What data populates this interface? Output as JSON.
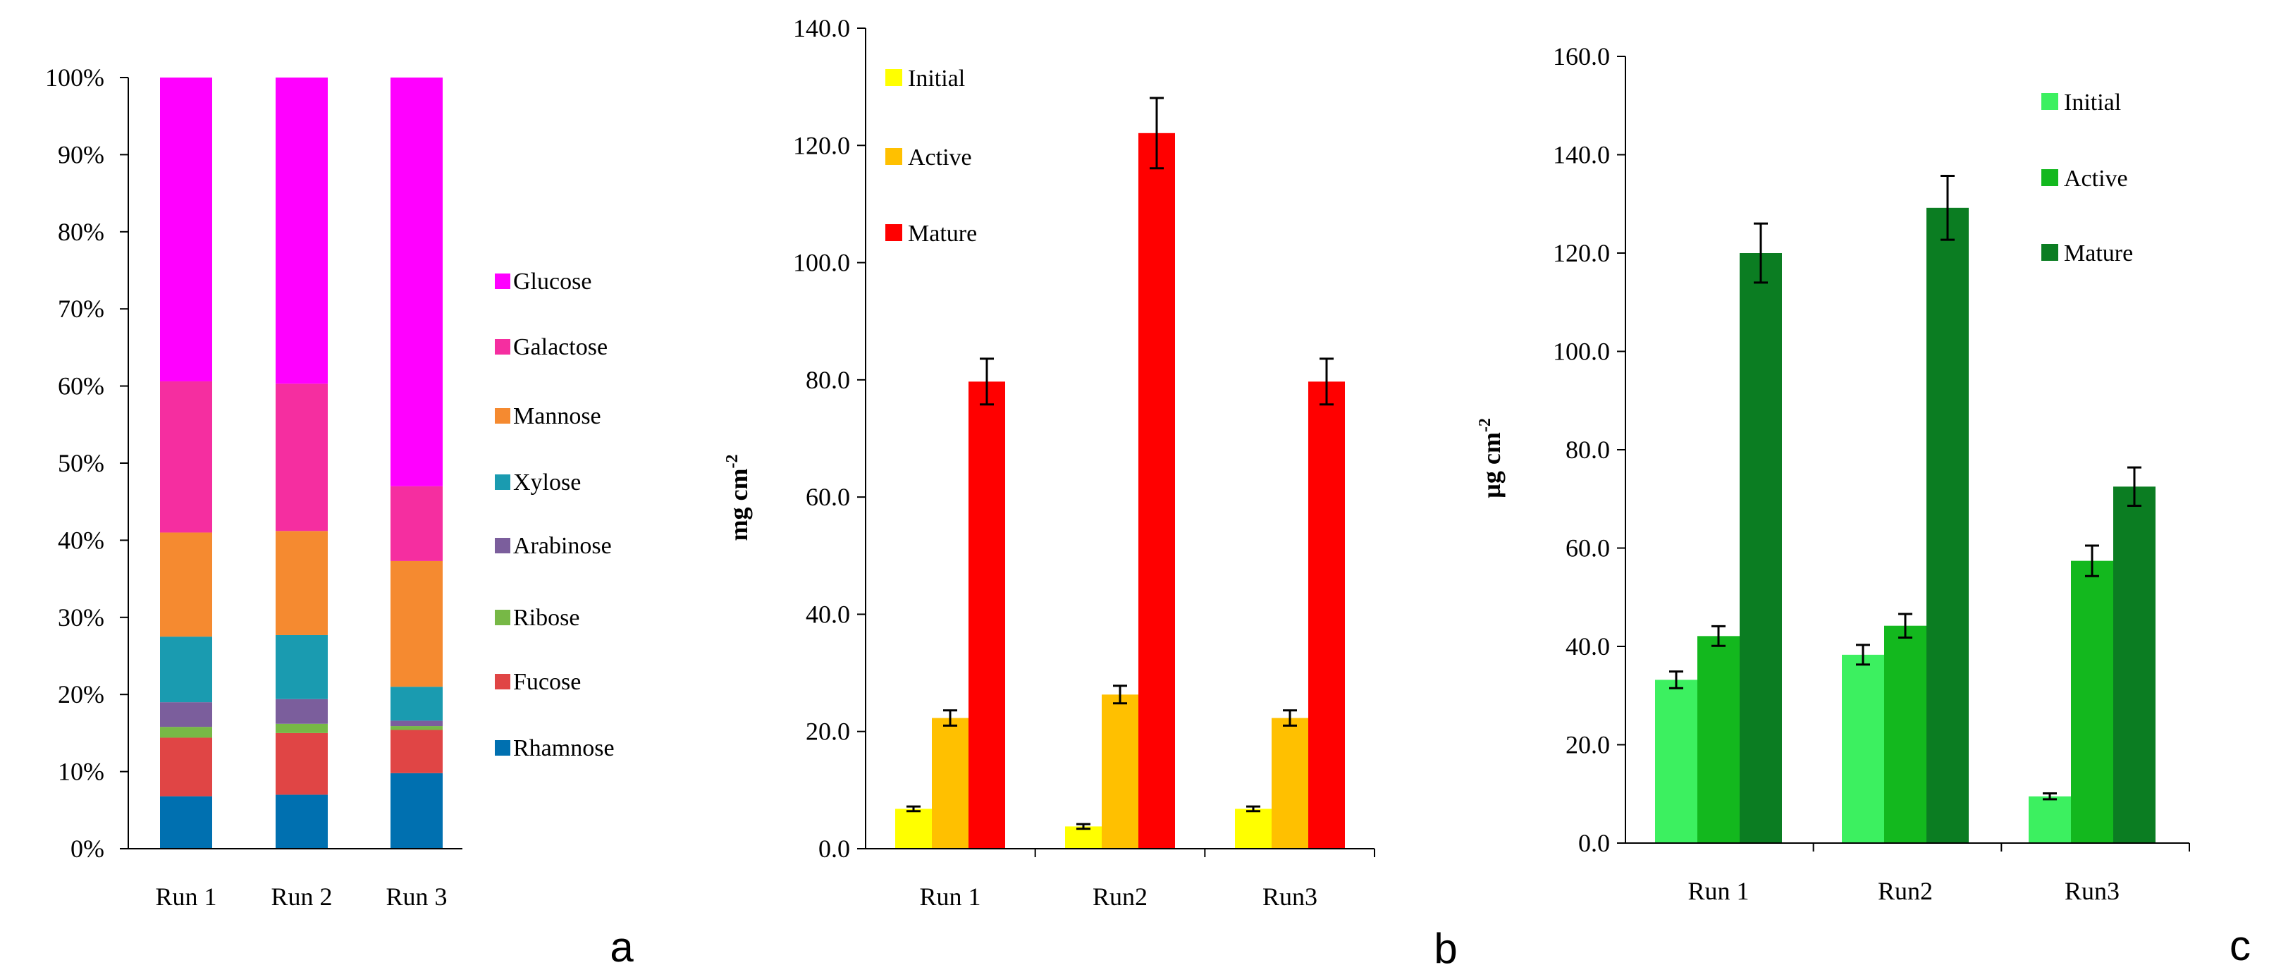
{
  "figure": {
    "panel_labels": [
      "a",
      "b",
      "c"
    ]
  },
  "chart_data": [
    {
      "type": "bar",
      "stacked": true,
      "percent": true,
      "categories": [
        "Run 1",
        "Run 2",
        "Run 3"
      ],
      "ylim": [
        0,
        100
      ],
      "yticks": [
        "0%",
        "10%",
        "20%",
        "30%",
        "40%",
        "50%",
        "60%",
        "70%",
        "80%",
        "90%",
        "100%"
      ],
      "legend_position": "right",
      "grid": false,
      "series": [
        {
          "name": "Rhamnose",
          "color": "#0070b0",
          "values": [
            6.8,
            7.0,
            9.8
          ]
        },
        {
          "name": "Fucose",
          "color": "#e04545",
          "values": [
            7.6,
            8.0,
            5.6
          ]
        },
        {
          "name": "Ribose",
          "color": "#77b846",
          "values": [
            1.4,
            1.2,
            0.5
          ]
        },
        {
          "name": "Arabinose",
          "color": "#7b5e9c",
          "values": [
            3.2,
            3.2,
            0.7
          ]
        },
        {
          "name": "Xylose",
          "color": "#1a9bb0",
          "values": [
            8.5,
            8.3,
            4.4
          ]
        },
        {
          "name": "Mannose",
          "color": "#f58a30",
          "values": [
            13.5,
            13.5,
            16.3
          ]
        },
        {
          "name": "Galactose",
          "color": "#f52ea0",
          "values": [
            19.6,
            19.1,
            9.7
          ]
        },
        {
          "name": "Glucose",
          "color": "#ff00ff",
          "values": [
            39.4,
            39.7,
            53.0
          ]
        }
      ]
    },
    {
      "type": "bar",
      "categories": [
        "Run 1",
        "Run2",
        "Run3"
      ],
      "ylabel": "mg cm",
      "ylabel_superscript": "-2",
      "ylim": [
        0,
        140
      ],
      "yticks": [
        "0.0",
        "20.0",
        "40.0",
        "60.0",
        "80.0",
        "100.0",
        "120.0",
        "140.0"
      ],
      "legend_position": "top-left",
      "grid": false,
      "series": [
        {
          "name": "Initial",
          "color": "#ffff00",
          "values": [
            6.8,
            3.8,
            6.8
          ],
          "errors": [
            0.4,
            0.4,
            0.4
          ]
        },
        {
          "name": "Active",
          "color": "#ffc000",
          "values": [
            22.3,
            26.3,
            22.3
          ],
          "errors": [
            1.3,
            1.5,
            1.3
          ]
        },
        {
          "name": "Mature",
          "color": "#ff0000",
          "values": [
            79.7,
            122.1,
            79.7
          ],
          "errors": [
            3.9,
            6.0,
            3.9
          ]
        }
      ]
    },
    {
      "type": "bar",
      "categories": [
        "Run 1",
        "Run2",
        "Run3"
      ],
      "ylabel": "µg cm",
      "ylabel_superscript": "-2",
      "ylim": [
        0,
        160
      ],
      "yticks": [
        "0.0",
        "20.0",
        "40.0",
        "60.0",
        "80.0",
        "100.0",
        "120.0",
        "140.0",
        "160.0"
      ],
      "legend_position": "top-right",
      "grid": false,
      "series": [
        {
          "name": "Initial",
          "color": "#3cf060",
          "values": [
            33.2,
            38.3,
            9.5
          ],
          "errors": [
            1.7,
            2.0,
            0.6
          ]
        },
        {
          "name": "Active",
          "color": "#13b81e",
          "values": [
            42.1,
            44.2,
            57.4
          ],
          "errors": [
            2.0,
            2.4,
            3.1
          ]
        },
        {
          "name": "Mature",
          "color": "#0b7d22",
          "values": [
            120.0,
            129.2,
            72.5
          ],
          "errors": [
            6.0,
            6.5,
            3.9
          ]
        }
      ]
    }
  ]
}
